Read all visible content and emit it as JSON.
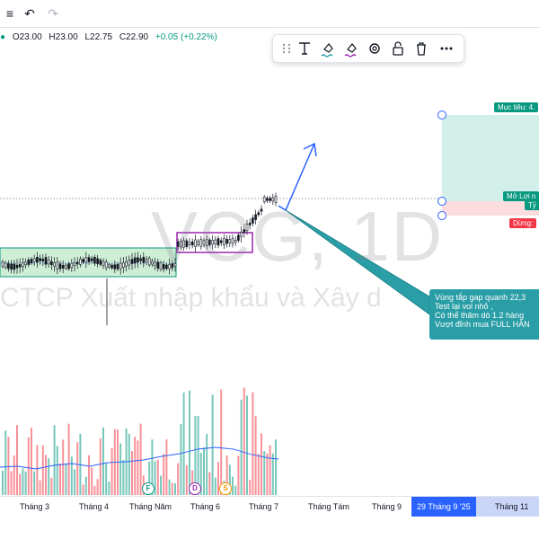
{
  "ohlc": {
    "open": "O23.00",
    "high": "H23.00",
    "low": "L22.75",
    "close": "C22.90",
    "change": "+0.05 (+0.22%)"
  },
  "watermark": {
    "symbol": "VCG, 1D",
    "company": "CTCP Xuất nhập khẩu và Xây d"
  },
  "callout": {
    "lines": [
      "Vùng tắp  gap quanh 22,3",
      "Test lại vol nhỏ ,",
      "Có thể thăm dò 1.2 hàng",
      "Vượt đỉnh mua FULL HÀN"
    ]
  },
  "position": {
    "target_label": "Mục tiêu: 4.",
    "open_label": "Mở Lợi n",
    "ratio_label": "Tỷ",
    "stop_label": "Dừng: "
  },
  "events": [
    {
      "letter": "F",
      "color": "#089981"
    },
    {
      "letter": "D",
      "color": "#9c27b0"
    },
    {
      "letter": "S",
      "color": "#ff9800"
    }
  ],
  "x_axis": {
    "labels": [
      "Tháng 3",
      "Tháng 4",
      "Tháng Năm",
      "Tháng 6",
      "Tháng 7",
      "Tháng Tám",
      "Tháng 9",
      "Tháng 11"
    ],
    "highlight": "29 Tháng 9 '25"
  },
  "colors": {
    "up": "#089981",
    "down": "#f23645",
    "accent": "#2962ff",
    "callout": "#2a9ea6"
  },
  "icons": {
    "undo": "undo-icon",
    "redo": "redo-icon",
    "menu": "menu-icon"
  }
}
